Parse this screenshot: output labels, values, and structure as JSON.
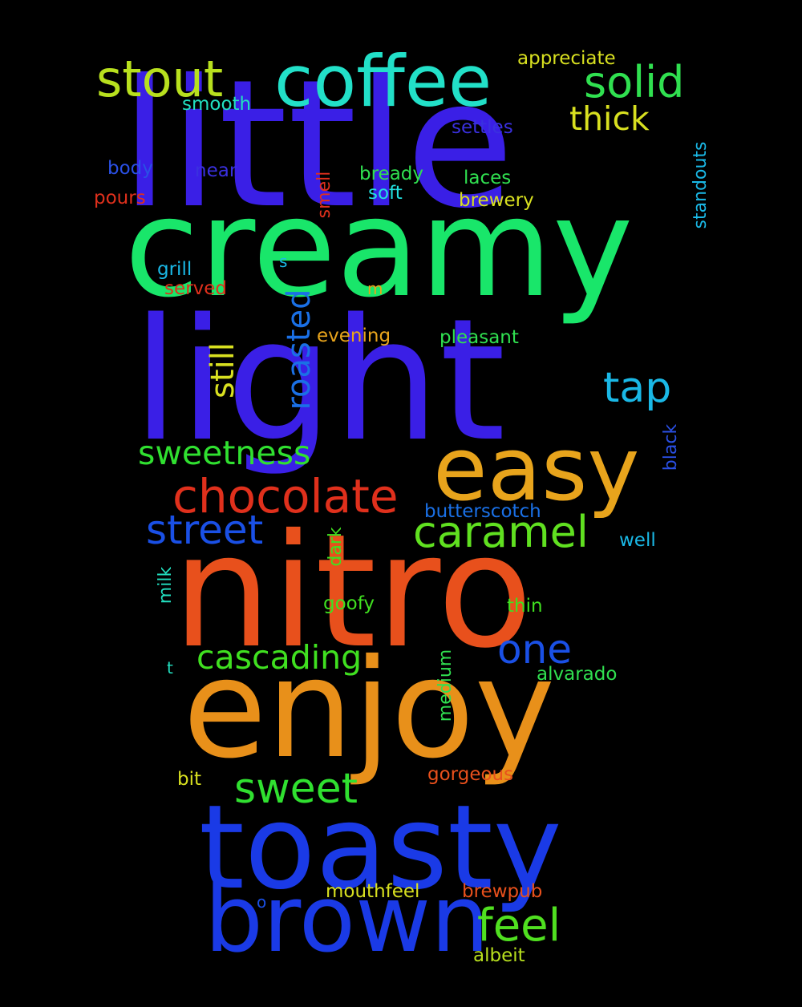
{
  "background": "#000000",
  "words": [
    {
      "text": "little",
      "color": "#3a1fe6"
    },
    {
      "text": "creamy",
      "color": "#19e66a"
    },
    {
      "text": "light",
      "color": "#3a1fe6"
    },
    {
      "text": "nitro",
      "color": "#e8501c"
    },
    {
      "text": "enjoy",
      "color": "#e8901a"
    },
    {
      "text": "toasty",
      "color": "#1a3ae6"
    },
    {
      "text": "brown",
      "color": "#1a3ae6"
    },
    {
      "text": "easy",
      "color": "#e8a41c"
    },
    {
      "text": "coffee",
      "color": "#22e0c8"
    },
    {
      "text": "stout",
      "color": "#b8e01e"
    },
    {
      "text": "solid",
      "color": "#30e050"
    },
    {
      "text": "chocolate",
      "color": "#e0301c"
    },
    {
      "text": "caramel",
      "color": "#60e020"
    },
    {
      "text": "street",
      "color": "#1a50e6"
    },
    {
      "text": "sweetness",
      "color": "#30e030"
    },
    {
      "text": "sweet",
      "color": "#30e030"
    },
    {
      "text": "one",
      "color": "#1a50e6"
    },
    {
      "text": "cascading",
      "color": "#40e020"
    },
    {
      "text": "feel",
      "color": "#50e020"
    },
    {
      "text": "tap",
      "color": "#1ab8e6"
    },
    {
      "text": "roasted",
      "color": "#1a70e6"
    },
    {
      "text": "still",
      "color": "#d8e020"
    },
    {
      "text": "thick",
      "color": "#d8e020"
    },
    {
      "text": "appreciate",
      "color": "#d8e020"
    },
    {
      "text": "smooth",
      "color": "#22e0c0"
    },
    {
      "text": "settles",
      "color": "#3a30e0"
    },
    {
      "text": "standouts",
      "color": "#1ab8e6"
    },
    {
      "text": "body",
      "color": "#2a50e6"
    },
    {
      "text": "near",
      "color": "#3a30e0"
    },
    {
      "text": "smell",
      "color": "#e0301c"
    },
    {
      "text": "bready",
      "color": "#30e050"
    },
    {
      "text": "laces",
      "color": "#30e050"
    },
    {
      "text": "soft",
      "color": "#22e0e0"
    },
    {
      "text": "brewery",
      "color": "#d8e020"
    },
    {
      "text": "pours",
      "color": "#e0301c"
    },
    {
      "text": "grill",
      "color": "#1ab8e6"
    },
    {
      "text": "s",
      "color": "#1ab8e6"
    },
    {
      "text": "served",
      "color": "#e0301c"
    },
    {
      "text": "m",
      "color": "#e8a41c"
    },
    {
      "text": "evening",
      "color": "#e8a41c"
    },
    {
      "text": "pleasant",
      "color": "#30e050"
    },
    {
      "text": "black",
      "color": "#2a50e6"
    },
    {
      "text": "butterscotch",
      "color": "#1a70e6"
    },
    {
      "text": "well",
      "color": "#1ab8e6"
    },
    {
      "text": "dark",
      "color": "#40e020"
    },
    {
      "text": "milk",
      "color": "#22e0c0"
    },
    {
      "text": "goofy",
      "color": "#40e020"
    },
    {
      "text": "thin",
      "color": "#40e020"
    },
    {
      "text": "t",
      "color": "#22e0c0"
    },
    {
      "text": "alvarado",
      "color": "#30e050"
    },
    {
      "text": "medium",
      "color": "#30e050"
    },
    {
      "text": "bit",
      "color": "#d8e020"
    },
    {
      "text": "gorgeous",
      "color": "#e8501c"
    },
    {
      "text": "mouthfeel",
      "color": "#d8e020"
    },
    {
      "text": "brewpub",
      "color": "#e8501c"
    },
    {
      "text": "o",
      "color": "#1a50e6"
    },
    {
      "text": "albeit",
      "color": "#b8e01e"
    }
  ]
}
